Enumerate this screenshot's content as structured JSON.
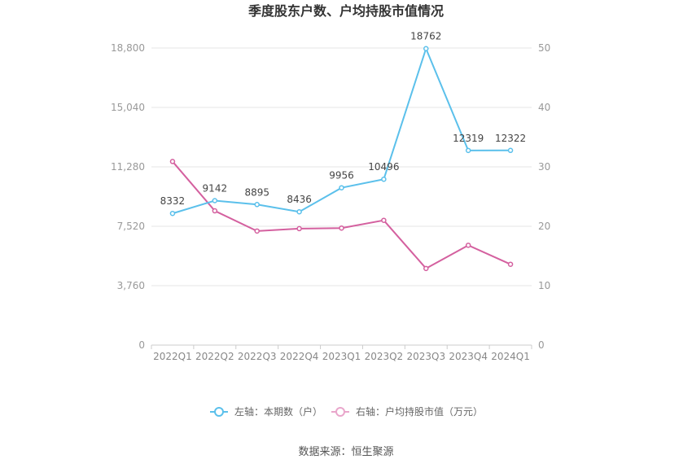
{
  "chart_data": {
    "type": "line",
    "title": "季度股东户数、户均持股市值情况",
    "categories": [
      "2022Q1",
      "2022Q2",
      "2022Q3",
      "2022Q4",
      "2023Q1",
      "2023Q2",
      "2023Q3",
      "2023Q4",
      "2024Q1"
    ],
    "left_axis": {
      "min": 0,
      "max": 18800,
      "ticks": [
        "0",
        "3,760",
        "7,520",
        "11,280",
        "15,040",
        "18,800"
      ]
    },
    "right_axis": {
      "min": 0,
      "max": 50,
      "ticks": [
        "0",
        "10",
        "20",
        "30",
        "40",
        "50"
      ]
    },
    "series": [
      {
        "name": "左轴：本期数（户）",
        "axis": "left",
        "color": "#5bc0eb",
        "values": [
          8332,
          9142,
          8895,
          8436,
          9956,
          10496,
          18762,
          12319,
          12322
        ],
        "labels": [
          "8332",
          "9142",
          "8895",
          "8436",
          "9956",
          "10496",
          "18762",
          "12319",
          "12322"
        ]
      },
      {
        "name": "右轴：户均持股市值（万元）",
        "axis": "right",
        "color": "#d4609f",
        "values": [
          30.9,
          22.6,
          19.2,
          19.6,
          19.7,
          21.0,
          12.9,
          16.8,
          13.6
        ]
      }
    ],
    "grid": true,
    "legend_position": "bottom"
  },
  "source": "数据来源：恒生聚源"
}
